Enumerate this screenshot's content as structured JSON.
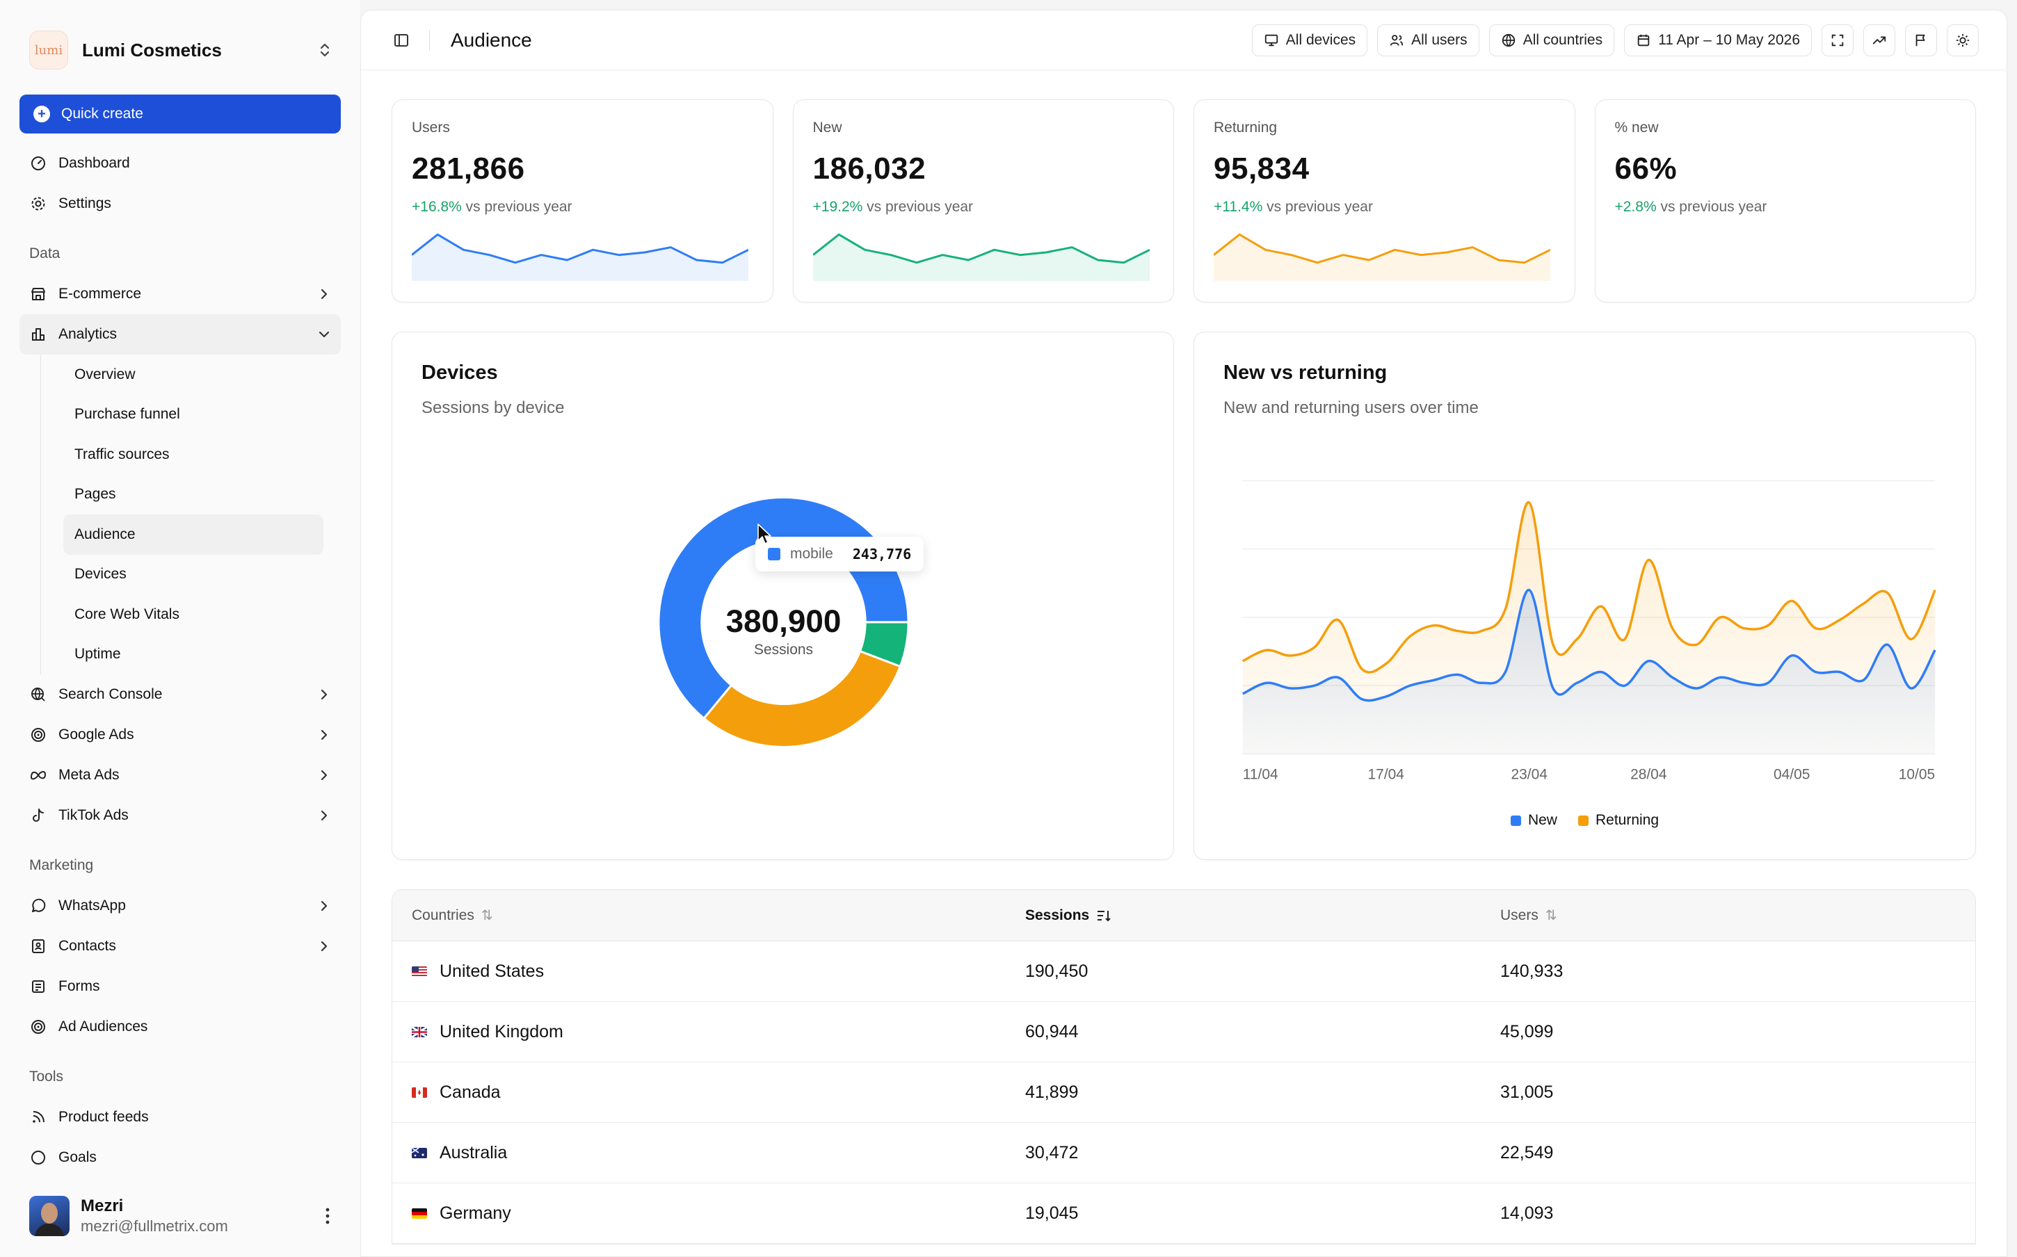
{
  "brand": {
    "logo_text": "lumi",
    "name": "Lumi Cosmetics"
  },
  "quick_create": "Quick create",
  "nav_top": [
    {
      "label": "Dashboard",
      "icon": "gauge-icon"
    },
    {
      "label": "Settings",
      "icon": "gear-icon"
    }
  ],
  "sections": {
    "data": "Data",
    "marketing": "Marketing",
    "tools": "Tools"
  },
  "nav_data": [
    {
      "label": "E-commerce",
      "icon": "store-icon"
    },
    {
      "label": "Analytics",
      "icon": "bar-chart-icon"
    }
  ],
  "analytics_sub": [
    "Overview",
    "Purchase funnel",
    "Traffic sources",
    "Pages",
    "Audience",
    "Devices",
    "Core Web Vitals",
    "Uptime"
  ],
  "nav_data_more": [
    {
      "label": "Search Console",
      "icon": "search-console-icon"
    },
    {
      "label": "Google Ads",
      "icon": "target-icon"
    },
    {
      "label": "Meta Ads",
      "icon": "meta-icon"
    },
    {
      "label": "TikTok Ads",
      "icon": "tiktok-icon"
    }
  ],
  "nav_marketing": [
    {
      "label": "WhatsApp",
      "icon": "whatsapp-icon"
    },
    {
      "label": "Contacts",
      "icon": "contacts-icon"
    },
    {
      "label": "Forms",
      "icon": "form-icon"
    },
    {
      "label": "Ad Audiences",
      "icon": "target-icon"
    }
  ],
  "nav_tools": [
    {
      "label": "Product feeds",
      "icon": "rss-icon"
    },
    {
      "label": "Goals",
      "icon": "goal-icon"
    }
  ],
  "user": {
    "name": "Mezri",
    "email": "mezri@fullmetrix.com"
  },
  "topbar": {
    "title": "Audience",
    "filters": [
      "All devices",
      "All users",
      "All countries",
      "11 Apr – 10 May 2026"
    ]
  },
  "kpis": [
    {
      "label": "Users",
      "value": "281,866",
      "delta": "+16.8%",
      "suffix": " vs previous year",
      "color": "#2f7df6",
      "spark": [
        8,
        16,
        10,
        8,
        5,
        8,
        6,
        10,
        8,
        9,
        11,
        6,
        5,
        10
      ]
    },
    {
      "label": "New",
      "value": "186,032",
      "delta": "+19.2%",
      "suffix": " vs previous year",
      "color": "#17b27a",
      "spark": [
        8,
        16,
        10,
        8,
        5,
        8,
        6,
        10,
        8,
        9,
        11,
        6,
        5,
        10
      ]
    },
    {
      "label": "Returning",
      "value": "95,834",
      "delta": "+11.4%",
      "suffix": " vs previous year",
      "color": "#f59e0b",
      "spark": [
        8,
        16,
        10,
        8,
        5,
        8,
        6,
        10,
        8,
        9,
        11,
        6,
        5,
        10
      ]
    },
    {
      "label": "% new",
      "value": "66%",
      "delta": "+2.8%",
      "suffix": " vs previous year",
      "color": "",
      "spark": []
    }
  ],
  "devices": {
    "title": "Devices",
    "subtitle": "Sessions by device",
    "total": "380,900",
    "total_label": "Sessions",
    "tooltip": {
      "label": "mobile",
      "value": "243,776"
    }
  },
  "new_vs_returning": {
    "title": "New vs returning",
    "subtitle": "New and returning users over time",
    "legend": [
      {
        "name": "New",
        "color": "#2f7df6"
      },
      {
        "name": "Returning",
        "color": "#f59e0b"
      }
    ],
    "x_ticks": [
      "11/04",
      "17/04",
      "23/04",
      "28/04",
      "04/05",
      "10/05"
    ]
  },
  "chart_data": [
    {
      "type": "pie",
      "title": "Devices",
      "subtitle": "Sessions by device",
      "total": 380900,
      "series": [
        {
          "name": "mobile",
          "value": 243776,
          "color": "#2f7df6"
        },
        {
          "name": "",
          "value": 22000,
          "color": "#14b37a"
        },
        {
          "name": "",
          "value": 115124,
          "color": "#f59e0b"
        }
      ]
    },
    {
      "type": "area",
      "title": "New vs returning",
      "subtitle": "New and returning users over time",
      "x": [
        "11/04",
        "12/04",
        "13/04",
        "14/04",
        "15/04",
        "16/04",
        "17/04",
        "18/04",
        "19/04",
        "20/04",
        "21/04",
        "22/04",
        "23/04",
        "24/04",
        "25/04",
        "26/04",
        "27/04",
        "28/04",
        "29/04",
        "30/04",
        "01/05",
        "02/05",
        "03/05",
        "04/05",
        "05/05",
        "06/05",
        "07/05",
        "08/05",
        "09/05",
        "10/05"
      ],
      "x_ticks": [
        "11/04",
        "17/04",
        "23/04",
        "28/04",
        "04/05",
        "10/05"
      ],
      "series": [
        {
          "name": "New",
          "color": "#2f7df6",
          "values": [
            22,
            26,
            24,
            25,
            28,
            20,
            21,
            25,
            27,
            29,
            26,
            30,
            60,
            24,
            26,
            30,
            25,
            34,
            28,
            24,
            28,
            26,
            26,
            36,
            30,
            30,
            27,
            40,
            24,
            38
          ]
        },
        {
          "name": "Returning",
          "color": "#f59e0b",
          "values": [
            34,
            38,
            36,
            39,
            49,
            31,
            33,
            43,
            47,
            45,
            45,
            53,
            92,
            40,
            42,
            54,
            42,
            71,
            46,
            40,
            50,
            46,
            47,
            56,
            46,
            49,
            55,
            59,
            42,
            60
          ]
        }
      ],
      "stacked": false,
      "grid": true,
      "legend": "bottom"
    }
  ],
  "table": {
    "headers": [
      "Countries",
      "Sessions",
      "Users"
    ],
    "rows": [
      {
        "flag": "us",
        "country": "United States",
        "sessions": "190,450",
        "users": "140,933"
      },
      {
        "flag": "gb",
        "country": "United Kingdom",
        "sessions": "60,944",
        "users": "45,099"
      },
      {
        "flag": "ca",
        "country": "Canada",
        "sessions": "41,899",
        "users": "31,005"
      },
      {
        "flag": "au",
        "country": "Australia",
        "sessions": "30,472",
        "users": "22,549"
      },
      {
        "flag": "de",
        "country": "Germany",
        "sessions": "19,045",
        "users": "14,093"
      }
    ]
  }
}
